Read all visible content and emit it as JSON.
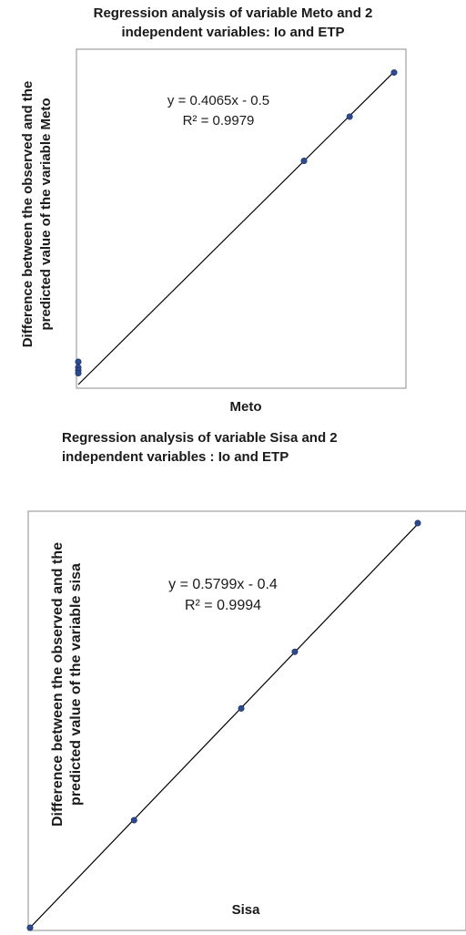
{
  "chart_data": [
    {
      "type": "scatter",
      "title_lines": [
        "Regression analysis of variable Meto and 2",
        "independent variables: Io and ETP"
      ],
      "xlabel": "Meto",
      "ylabel_lines": [
        "Difference between the observed and the",
        "predicted value of the variable Meto"
      ],
      "equation": "y = 0.4065x - 0.5",
      "r_squared": "R² = 0.9979",
      "trendline": {
        "slope": 0.4065,
        "intercept": -0.5
      },
      "xlim": [
        0,
        27
      ],
      "ylim": [
        -0.5,
        10.5
      ],
      "grid": false,
      "series": [
        {
          "x": [
            0,
            0,
            0,
            0,
            19.3,
            23.2,
            27.0
          ],
          "y": [
            0.3,
            0.1,
            0,
            -0.1,
            7.35,
            8.9,
            10.45
          ],
          "color": "#2e4a8f"
        }
      ]
    },
    {
      "type": "scatter",
      "title_lines": [
        "Regression analysis of variable Sisa and 2",
        "independent variables : Io and ETP"
      ],
      "xlabel": "Sisa",
      "ylabel_lines": [
        "Difference between the observed and the",
        "predicted  value of the variable sisa"
      ],
      "equation": "y = 0.5799x - 0.4",
      "r_squared": "R² = 0.9994",
      "trendline": {
        "slope": 0.5799,
        "intercept": -0.4
      },
      "xlim": [
        0,
        24.6
      ],
      "ylim": [
        -0.4,
        13.9
      ],
      "grid": false,
      "series": [
        {
          "x": [
            0,
            6.6,
            13.4,
            16.8,
            24.6
          ],
          "y": [
            -0.4,
            3.4,
            7.35,
            9.35,
            13.9
          ],
          "color": "#2e4a8f"
        }
      ]
    }
  ]
}
